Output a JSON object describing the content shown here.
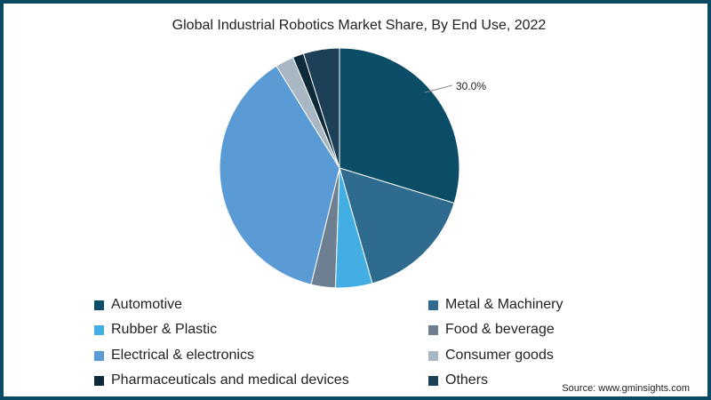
{
  "chart_data": {
    "type": "pie",
    "title": "Global Industrial Robotics Market Share, By End Use, 2022",
    "slices": [
      {
        "label": "Automotive",
        "value": 30.0,
        "color": "#0b4d66",
        "data_label": "30.0%"
      },
      {
        "label": "Metal & Machinery",
        "value": 16.0,
        "color": "#2e6b8e"
      },
      {
        "label": "Rubber & Plastic",
        "value": 5.0,
        "color": "#43aee3"
      },
      {
        "label": "Food & beverage",
        "value": 3.3,
        "color": "#6d7f91"
      },
      {
        "label": "Electrical & electronics",
        "value": 37.7,
        "color": "#5b9bd5"
      },
      {
        "label": "Consumer goods",
        "value": 2.5,
        "color": "#a9b6c3"
      },
      {
        "label": "Pharmaceuticals and medical devices",
        "value": 1.5,
        "color": "#0d2a3a"
      },
      {
        "label": "Others",
        "value": 4.9,
        "color": "#1d3f57"
      }
    ],
    "legend_position": "bottom"
  },
  "source": "Source: www.gminsights.com"
}
